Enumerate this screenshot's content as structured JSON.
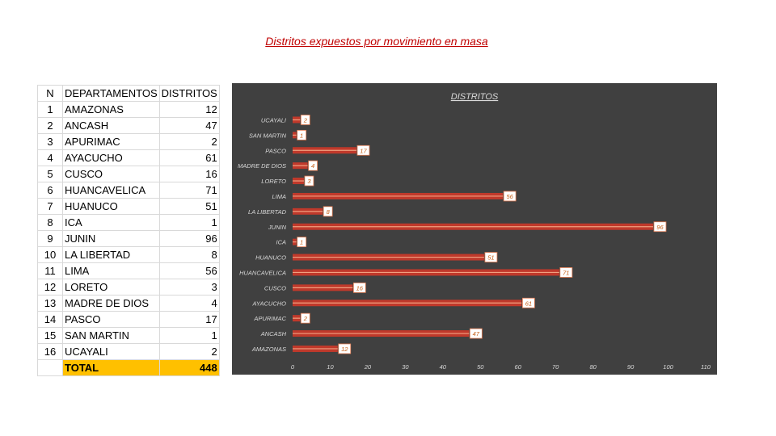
{
  "page": {
    "title": "Distritos expuestos por movimiento en masa"
  },
  "table": {
    "headers": [
      "N",
      "DEPARTAMENTOS",
      "DISTRITOS"
    ],
    "rows": [
      [
        "1",
        "AMAZONAS",
        "12"
      ],
      [
        "2",
        "ANCASH",
        "47"
      ],
      [
        "3",
        "APURIMAC",
        "2"
      ],
      [
        "4",
        "AYACUCHO",
        "61"
      ],
      [
        "5",
        "CUSCO",
        "16"
      ],
      [
        "6",
        "HUANCAVELICA",
        "71"
      ],
      [
        "7",
        "HUANUCO",
        "51"
      ],
      [
        "8",
        "ICA",
        "1"
      ],
      [
        "9",
        "JUNIN",
        "96"
      ],
      [
        "10",
        "LA LIBERTAD",
        "8"
      ],
      [
        "11",
        "LIMA",
        "56"
      ],
      [
        "12",
        "LORETO",
        "3"
      ],
      [
        "13",
        "MADRE DE DIOS",
        "4"
      ],
      [
        "14",
        "PASCO",
        "17"
      ],
      [
        "15",
        "SAN MARTIN",
        "1"
      ],
      [
        "16",
        "UCAYALI",
        "2"
      ]
    ],
    "total_label": "TOTAL",
    "total_value": "448"
  },
  "chart_data": {
    "type": "bar",
    "orientation": "horizontal",
    "title": "DISTRITOS",
    "categories": [
      "UCAYALI",
      "SAN MARTIN",
      "PASCO",
      "MADRE DE DIOS",
      "LORETO",
      "LIMA",
      "LA LIBERTAD",
      "JUNIN",
      "ICA",
      "HUANUCO",
      "HUANCAVELICA",
      "CUSCO",
      "AYACUCHO",
      "APURIMAC",
      "ANCASH",
      "AMAZONAS"
    ],
    "values": [
      2,
      1,
      17,
      4,
      3,
      56,
      8,
      96,
      1,
      51,
      71,
      16,
      61,
      2,
      47,
      12
    ],
    "xlim": [
      0,
      110
    ],
    "xticks": [
      0,
      10,
      20,
      30,
      40,
      50,
      60,
      70,
      80,
      90,
      100,
      110
    ],
    "xlabel": "",
    "ylabel": "",
    "grid": false,
    "legend": "none",
    "colors": {
      "background": "#404040",
      "bar_fill": "#c0392b",
      "bar_stripe": "#f0a080",
      "label_box_fill": "#ffffff",
      "label_box_border": "#e07a50",
      "label_text": "#c55a11",
      "axis_text": "#d9d9d9",
      "title_text": "#d9d9d9"
    }
  }
}
